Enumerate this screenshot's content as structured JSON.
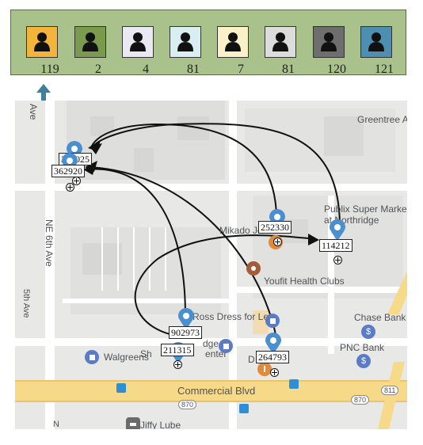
{
  "users": [
    {
      "name": "user-orange",
      "color": "#f2b43a",
      "count": "119"
    },
    {
      "name": "user-olive",
      "color": "#7a9a4e",
      "count": "2"
    },
    {
      "name": "user-lavender",
      "color": "#e9e8f3",
      "count": "4"
    },
    {
      "name": "user-mint",
      "color": "#d8eef0",
      "count": "81"
    },
    {
      "name": "user-cream",
      "color": "#fbf1c8",
      "count": "7"
    },
    {
      "name": "user-gray",
      "color": "#dcdcdc",
      "count": "81"
    },
    {
      "name": "user-darkgray",
      "color": "#6e6e6e",
      "count": "120"
    },
    {
      "name": "user-blue",
      "color": "#4c8fb0",
      "count": "121"
    }
  ],
  "map": {
    "streets": {
      "ne6th": "NE 6th Ave",
      "ave_top": "Ave",
      "sth_ave": "5th Ave",
      "commercial": "Commercial Blvd"
    },
    "places": {
      "greentree": "Greentree Ap",
      "publix_1": "Publix Super Market",
      "publix_2": "at Northridge",
      "mikado": "Mikado Je",
      "youfit": "Youfit Health Clubs",
      "ross": "Ross Dress for Less",
      "chase": "Chase Bank",
      "pnc": "PNC Bank",
      "walgreens": "Walgreens",
      "shopping_1": "dge",
      "shopping_2": "Sh",
      "shopping_3": "enter",
      "d": "D",
      "jiffy": "Jiffy Lube",
      "n": "N",
      "road_870a": "870",
      "road_870b": "870",
      "road_811": "811"
    }
  },
  "pins": [
    {
      "id": "pin-a",
      "label": "361025"
    },
    {
      "id": "pin-b",
      "label": "362920"
    },
    {
      "id": "pin-c",
      "label": "252330"
    },
    {
      "id": "pin-d",
      "label": "114212"
    },
    {
      "id": "pin-e",
      "label": "902973"
    },
    {
      "id": "pin-f",
      "label": "211315"
    },
    {
      "id": "pin-g",
      "label": "264793"
    }
  ]
}
